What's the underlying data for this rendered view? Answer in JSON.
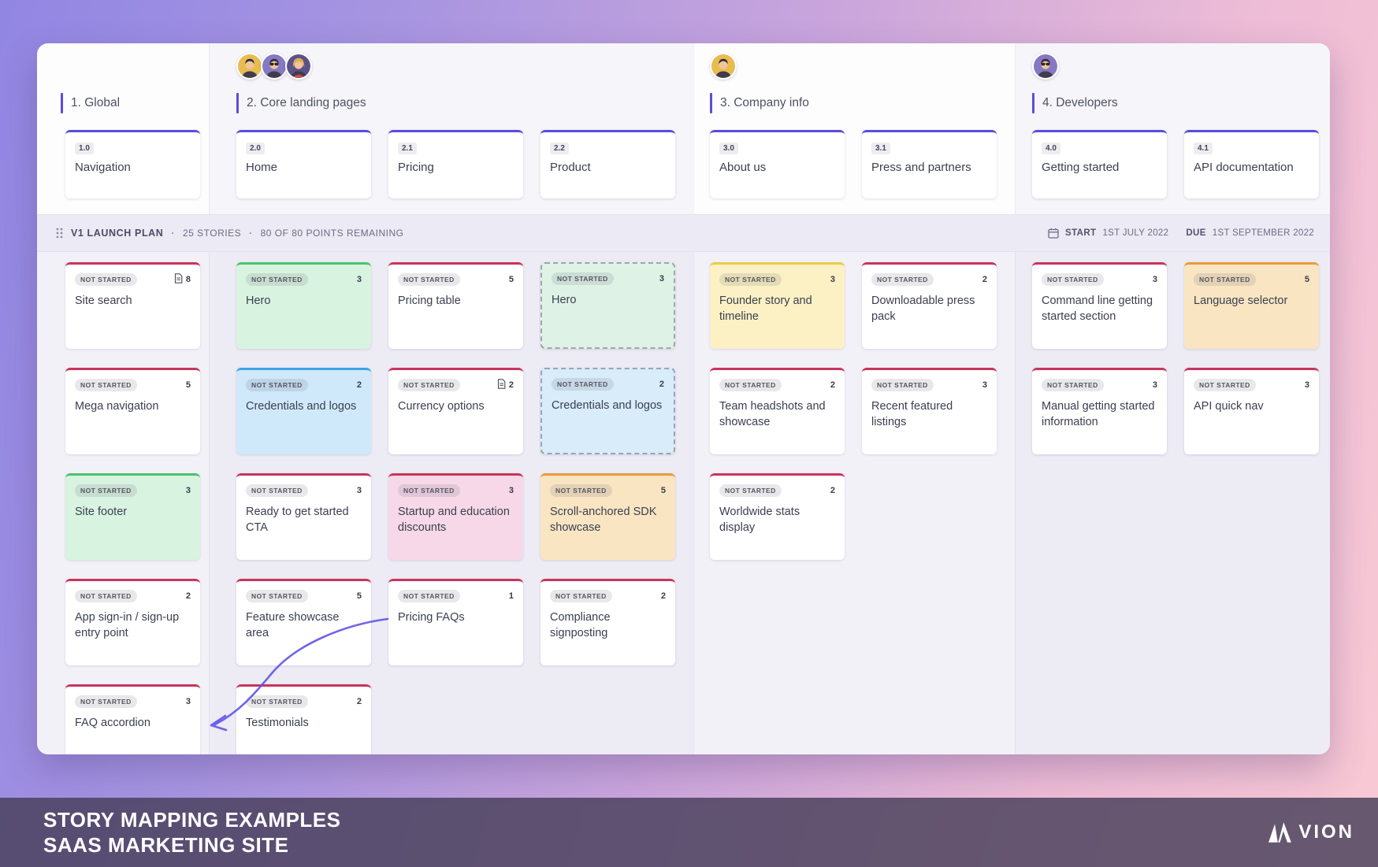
{
  "board": {
    "status_label": "NOT STARTED",
    "release": {
      "name": "V1 LAUNCH PLAN",
      "separator": "·",
      "stories_count": "25 STORIES",
      "points_remaining": "80 OF 80 POINTS REMAINING",
      "start_label": "START",
      "start_date": "1ST JULY 2022",
      "due_label": "DUE",
      "due_date": "1ST SEPTEMBER 2022"
    },
    "groups": [
      {
        "name": "1. Global",
        "avatars": [],
        "steps": [
          {
            "num": "1.0",
            "label": "Navigation",
            "col": "c1"
          }
        ]
      },
      {
        "name": "2. Core landing pages",
        "avatars": [
          {
            "type": "man",
            "bg": "#e8bc4e"
          },
          {
            "type": "man-glasses",
            "bg": "#8678c2"
          },
          {
            "type": "woman",
            "bg": "#5c5187"
          }
        ],
        "steps": [
          {
            "num": "2.0",
            "label": "Home",
            "col": "c2a"
          },
          {
            "num": "2.1",
            "label": "Pricing",
            "col": "c2b"
          },
          {
            "num": "2.2",
            "label": "Product",
            "col": "c2c"
          }
        ]
      },
      {
        "name": "3. Company info",
        "avatars": [
          {
            "type": "man",
            "bg": "#e8bc4e"
          }
        ],
        "steps": [
          {
            "num": "3.0",
            "label": "About us",
            "col": "c3a"
          },
          {
            "num": "3.1",
            "label": "Press and partners",
            "col": "c3b"
          }
        ]
      },
      {
        "name": "4. Developers",
        "avatars": [
          {
            "type": "man-glasses",
            "bg": "#8678c2"
          }
        ],
        "steps": [
          {
            "num": "4.0",
            "label": "Getting started",
            "col": "c4a"
          },
          {
            "num": "4.1",
            "label": "API documentation",
            "col": "c4b"
          }
        ]
      }
    ],
    "stories": [
      {
        "col": "c1",
        "row": 0,
        "title": "Site search",
        "points": 8,
        "doc": true,
        "variant": "white"
      },
      {
        "col": "c1",
        "row": 1,
        "title": "Mega navigation",
        "points": 5,
        "variant": "white"
      },
      {
        "col": "c1",
        "row": 2,
        "title": "Site footer",
        "points": 3,
        "variant": "green"
      },
      {
        "col": "c1",
        "row": 3,
        "title": "App sign-in / sign-up entry point",
        "points": 2,
        "variant": "white"
      },
      {
        "col": "c1",
        "row": 4,
        "title": "FAQ accordion",
        "points": 3,
        "variant": "white"
      },
      {
        "col": "c2a",
        "row": 0,
        "title": "Hero",
        "points": 3,
        "variant": "green"
      },
      {
        "col": "c2a",
        "row": 1,
        "title": "Credentials and logos",
        "points": 2,
        "variant": "blue"
      },
      {
        "col": "c2a",
        "row": 2,
        "title": "Ready to get started CTA",
        "points": 3,
        "variant": "white"
      },
      {
        "col": "c2a",
        "row": 3,
        "title": "Feature showcase area",
        "points": 5,
        "variant": "white"
      },
      {
        "col": "c2a",
        "row": 4,
        "title": "Testimonials",
        "points": 2,
        "variant": "white"
      },
      {
        "col": "c2b",
        "row": 0,
        "title": "Pricing table",
        "points": 5,
        "variant": "white"
      },
      {
        "col": "c2b",
        "row": 1,
        "title": "Currency options",
        "points": 2,
        "doc": true,
        "variant": "white"
      },
      {
        "col": "c2b",
        "row": 2,
        "title": "Startup and education discounts",
        "points": 3,
        "variant": "pink"
      },
      {
        "col": "c2b",
        "row": 3,
        "title": "Pricing FAQs",
        "points": 1,
        "variant": "white"
      },
      {
        "col": "c2c",
        "row": 0,
        "title": "Hero",
        "points": 3,
        "variant": "green-dashed"
      },
      {
        "col": "c2c",
        "row": 1,
        "title": "Credentials and logos",
        "points": 2,
        "variant": "blue-dashed"
      },
      {
        "col": "c2c",
        "row": 2,
        "title": "Scroll-anchored SDK showcase",
        "points": 5,
        "variant": "orange"
      },
      {
        "col": "c2c",
        "row": 3,
        "title": "Compliance signposting",
        "points": 2,
        "variant": "white"
      },
      {
        "col": "c3a",
        "row": 0,
        "title": "Founder story and timeline",
        "points": 3,
        "variant": "yellow"
      },
      {
        "col": "c3a",
        "row": 1,
        "title": "Team headshots and showcase",
        "points": 2,
        "variant": "white"
      },
      {
        "col": "c3a",
        "row": 2,
        "title": "Worldwide stats display",
        "points": 2,
        "variant": "white"
      },
      {
        "col": "c3b",
        "row": 0,
        "title": "Downloadable press pack",
        "points": 2,
        "variant": "white"
      },
      {
        "col": "c3b",
        "row": 1,
        "title": "Recent featured listings",
        "points": 3,
        "variant": "white"
      },
      {
        "col": "c4a",
        "row": 0,
        "title": "Command line getting started section",
        "points": 3,
        "variant": "white"
      },
      {
        "col": "c4a",
        "row": 1,
        "title": "Manual getting started information",
        "points": 3,
        "variant": "white"
      },
      {
        "col": "c4b",
        "row": 0,
        "title": "Language selector",
        "points": 5,
        "variant": "orange"
      },
      {
        "col": "c4b",
        "row": 1,
        "title": "API quick nav",
        "points": 3,
        "variant": "white"
      }
    ]
  },
  "banner": {
    "title_line1": "STORY MAPPING EXAMPLES",
    "title_line2": "SAAS MARKETING SITE",
    "logo_text": "VION"
  },
  "colors": {
    "accent_purple": "#5b4ddb",
    "card_top_red": "#c7355d",
    "card_green": "#d8f3e0",
    "card_blue": "#cfe9fa",
    "card_yellow": "#fbf1c4",
    "card_orange": "#f9e5c2",
    "card_pink": "#f6d8e8",
    "arrow": "#5e54e8"
  }
}
